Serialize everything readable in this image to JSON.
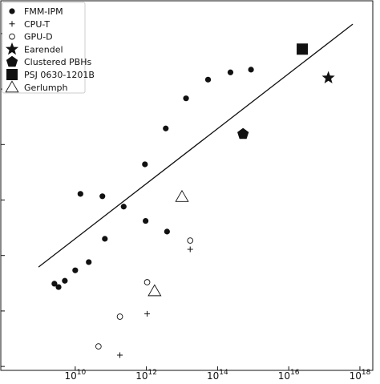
{
  "chart_data": {
    "type": "scatter",
    "x_scale": "log",
    "y_scale": "log",
    "xlim": [
      81000000.0,
      2.3e+18
    ],
    "ylim": [
      0.85,
      3900000.0
    ],
    "xticks": [
      {
        "value": 10000000000.0,
        "label": "10",
        "exponent": "10"
      },
      {
        "value": 1000000000000.0,
        "label": "10",
        "exponent": "12"
      },
      {
        "value": 100000000000000.0,
        "label": "10",
        "exponent": "14"
      },
      {
        "value": 1e+16,
        "label": "10",
        "exponent": "16"
      },
      {
        "value": 1e+18,
        "label": "10",
        "exponent": "18"
      }
    ],
    "yticks": [
      1,
      10,
      100,
      1000,
      10000,
      100000,
      1000000
    ],
    "legend": "upper left",
    "fit_line": {
      "color": "#111111",
      "x": [
        930000000.0,
        6.3e+17
      ],
      "y": [
        62,
        1480000
      ]
    },
    "series": [
      {
        "name": "FMM-IPM",
        "marker": "dot",
        "color": "#111111",
        "x": [
          2600000000.0,
          3400000000.0,
          5100000000.0,
          10000000000.0,
          24000000000.0,
          14000000000.0,
          58000000000.0,
          68000000000.0,
          230000000000.0,
          950000000000.0,
          910000000000.0,
          3800000000000.0,
          3500000000000.0,
          13000000000000.0,
          54000000000000.0,
          230000000000000.0,
          870000000000000.0
        ],
        "values": [
          31,
          27,
          35,
          54,
          76,
          1290,
          1170,
          200,
          760,
          420,
          4400,
          270,
          19500,
          68000,
          148000,
          200000,
          224000
        ]
      },
      {
        "name": "CPU-T",
        "marker": "plus",
        "color": "#111111",
        "x": [
          180000000000.0,
          1050000000000.0,
          17000000000000.0
        ],
        "values": [
          1.6,
          8.9,
          129
        ]
      },
      {
        "name": "GPU-D",
        "marker": "open-circle",
        "color": "#111111",
        "x": [
          45000000000.0,
          180000000000.0,
          1050000000000.0,
          17000000000000.0
        ],
        "values": [
          2.3,
          7.9,
          33,
          186
        ]
      },
      {
        "name": "Earendel",
        "marker": "star",
        "color": "#111111",
        "x": [
          1.3e+17
        ],
        "values": [
          159000
        ]
      },
      {
        "name": "Clustered PBHs",
        "marker": "pentagon",
        "color": "#111111",
        "x": [
          520000000000000.0
        ],
        "values": [
          15500
        ]
      },
      {
        "name": "PSJ 0630-1201B",
        "marker": "square",
        "color": "#111111",
        "x": [
          2.4e+16
        ],
        "values": [
          525000
        ]
      },
      {
        "name": "Gerlumph",
        "marker": "triangle",
        "color": "#111111",
        "x": [
          10000000000000.0,
          1700000000000.0
        ],
        "values": [
          1150,
          23
        ]
      }
    ]
  }
}
